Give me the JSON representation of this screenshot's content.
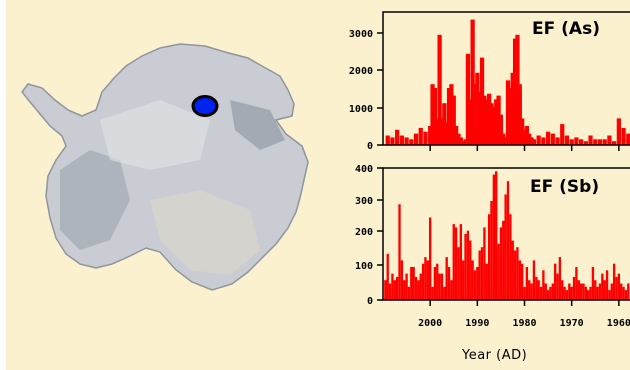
{
  "colors": {
    "background": "#fbf1cf",
    "bars": "#ff0000",
    "marker": "#0022ee",
    "ice": "#c9ccd2"
  },
  "map": {
    "marker_icon": "site-marker-icon"
  },
  "xlabel": "Year (AD)",
  "x_ticks": [
    "2000",
    "1990",
    "1980",
    "1970",
    "1960"
  ],
  "chart_data": [
    {
      "type": "bar",
      "title": "",
      "series_label": "EF (As)",
      "ylabel": "",
      "ylim": [
        0,
        3500
      ],
      "y_ticks": [
        "0",
        "1000",
        "2000",
        "3000"
      ],
      "xlim": [
        2010,
        1957
      ],
      "x": [
        2009,
        2008,
        2007,
        2006,
        2005,
        2004,
        2003,
        2002,
        2001,
        2000,
        1999.5,
        1999,
        1998.5,
        1998,
        1997.5,
        1997,
        1996.5,
        1996,
        1995.5,
        1995,
        1994.5,
        1994,
        1993.5,
        1993,
        1992.5,
        1992,
        1991.5,
        1991,
        1990.5,
        1990,
        1989.5,
        1989,
        1988.5,
        1988,
        1987.5,
        1987,
        1986.5,
        1986,
        1985.5,
        1985,
        1984.5,
        1984,
        1983.5,
        1983,
        1982.5,
        1982,
        1981.5,
        1981,
        1980.5,
        1980,
        1979.5,
        1979,
        1978.5,
        1978,
        1977,
        1976,
        1975,
        1974,
        1973,
        1972,
        1971,
        1970,
        1969,
        1968,
        1967,
        1966,
        1965,
        1964,
        1963,
        1962,
        1961,
        1960,
        1959,
        1958
      ],
      "values": [
        250,
        200,
        400,
        250,
        200,
        150,
        300,
        450,
        350,
        500,
        1600,
        1500,
        700,
        2900,
        700,
        1100,
        600,
        1500,
        1600,
        1300,
        500,
        300,
        200,
        100,
        150,
        2400,
        1200,
        3300,
        1600,
        1900,
        1400,
        2300,
        1300,
        1200,
        1350,
        1100,
        1000,
        1200,
        1300,
        800,
        300,
        200,
        1700,
        1500,
        1900,
        2800,
        2900,
        1600,
        700,
        400,
        500,
        300,
        200,
        150,
        250,
        200,
        350,
        300,
        200,
        550,
        250,
        150,
        200,
        150,
        100,
        250,
        150,
        150,
        150,
        250,
        100,
        700,
        450,
        300
      ]
    },
    {
      "type": "bar",
      "title": "",
      "series_label": "EF (Sb)",
      "ylabel": "",
      "ylim": [
        0,
        400
      ],
      "y_ticks": [
        "0",
        "100",
        "200",
        "300",
        "400"
      ],
      "xlim": [
        2010,
        1957
      ],
      "x": [
        2009.5,
        2009,
        2008.5,
        2008,
        2007.5,
        2007,
        2006.5,
        2006,
        2005.5,
        2005,
        2004.5,
        2004,
        2003.5,
        2003,
        2002.5,
        2002,
        2001.5,
        2001,
        2000.5,
        2000,
        1999.5,
        1999,
        1998.5,
        1998,
        1997.5,
        1997,
        1996.5,
        1996,
        1995.5,
        1995,
        1994.5,
        1994,
        1993.5,
        1993,
        1992.5,
        1992,
        1991.5,
        1991,
        1990.5,
        1990,
        1989.5,
        1989,
        1988.5,
        1988,
        1987.5,
        1987,
        1986.5,
        1986,
        1985.5,
        1985,
        1984.5,
        1984,
        1983.5,
        1983,
        1982.5,
        1982,
        1981.5,
        1981,
        1980.5,
        1980,
        1979.5,
        1979,
        1978.5,
        1978,
        1977.5,
        1977,
        1976.5,
        1976,
        1975.5,
        1975,
        1974.5,
        1974,
        1973.5,
        1973,
        1972.5,
        1972,
        1971.5,
        1971,
        1970.5,
        1970,
        1969.5,
        1969,
        1968.5,
        1968,
        1967.5,
        1967,
        1966.5,
        1966,
        1965.5,
        1965,
        1964.5,
        1964,
        1963.5,
        1963,
        1962.5,
        1962,
        1961.5,
        1961,
        1960.5,
        1960,
        1959.5,
        1959,
        1958.5,
        1958
      ],
      "values": [
        60,
        140,
        50,
        80,
        60,
        70,
        290,
        120,
        60,
        80,
        40,
        100,
        100,
        70,
        60,
        80,
        110,
        130,
        120,
        250,
        40,
        100,
        110,
        80,
        80,
        40,
        130,
        100,
        60,
        230,
        220,
        160,
        230,
        120,
        200,
        210,
        180,
        120,
        90,
        100,
        150,
        160,
        220,
        110,
        260,
        300,
        380,
        390,
        170,
        220,
        240,
        320,
        360,
        260,
        180,
        150,
        160,
        120,
        110,
        40,
        100,
        60,
        50,
        120,
        70,
        60,
        40,
        90,
        50,
        30,
        40,
        50,
        110,
        80,
        130,
        60,
        40,
        30,
        50,
        40,
        70,
        100,
        60,
        50,
        50,
        40,
        30,
        40,
        100,
        60,
        40,
        50,
        80,
        60,
        90,
        30,
        50,
        110,
        70,
        80,
        50,
        40,
        30,
        50
      ]
    }
  ]
}
